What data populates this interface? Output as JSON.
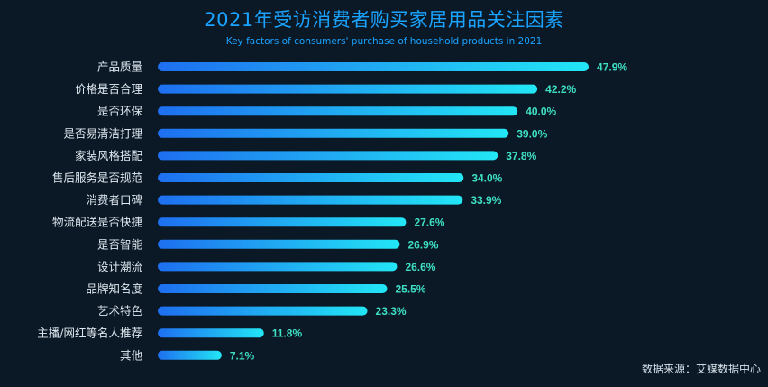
{
  "chart_data": {
    "type": "bar",
    "orientation": "horizontal",
    "title": "2021年受访消费者购买家居用品关注因素",
    "subtitle": "Key factors of consumers' purchase of household products in 2021",
    "categories": [
      "产品质量",
      "价格是否合理",
      "是否环保",
      "是否易清洁打理",
      "家装风格搭配",
      "售后服务是否规范",
      "消费者口碑",
      "物流配送是否快捷",
      "是否智能",
      "设计潮流",
      "品牌知名度",
      "艺术特色",
      "主播/网红等名人推荐",
      "其他"
    ],
    "values": [
      47.9,
      42.2,
      40.0,
      39.0,
      37.8,
      34.0,
      33.9,
      27.6,
      26.9,
      26.6,
      25.5,
      23.3,
      11.8,
      7.1
    ],
    "value_labels": [
      "47.9%",
      "42.2%",
      "40.0%",
      "39.0%",
      "37.8%",
      "34.0%",
      "33.9%",
      "27.6%",
      "26.9%",
      "26.6%",
      "25.5%",
      "23.3%",
      "11.8%",
      "7.1%"
    ],
    "unit": "%",
    "grid": false,
    "legend": "none",
    "colors": {
      "background": "#0b1926",
      "bar_start": "#1e6ff0",
      "bar_end": "#22e6f5",
      "value_label": "#3ee0c4",
      "category_label": "#dfe8f0",
      "title": "#1aa3ff"
    }
  },
  "footer": {
    "source": "数据来源：艾媒数据中心"
  }
}
